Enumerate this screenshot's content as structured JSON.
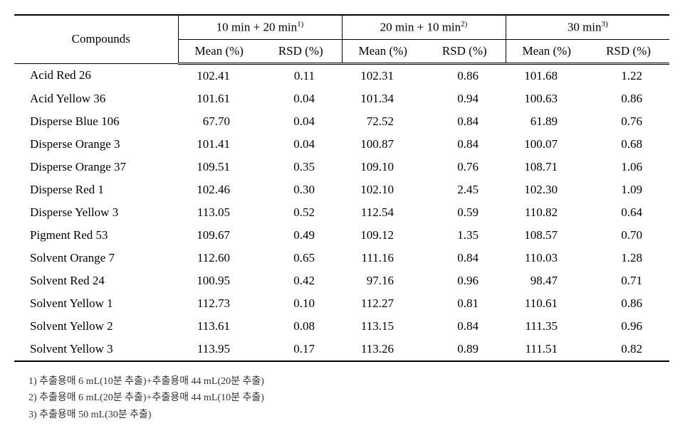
{
  "table": {
    "headers": {
      "compounds": "Compounds",
      "group1": {
        "label_pre": "10 min + 20 min",
        "sup": "1)"
      },
      "group2": {
        "label_pre": "20 min + 10 min",
        "sup": "2)"
      },
      "group3": {
        "label_pre": "30 min",
        "sup": "3)"
      },
      "mean": "Mean (%)",
      "rsd": "RSD (%)"
    },
    "rows": [
      {
        "compound": "Acid Red 26",
        "g1_mean": "102.41",
        "g1_rsd": "0.11",
        "g2_mean": "102.31",
        "g2_rsd": "0.86",
        "g3_mean": "101.68",
        "g3_rsd": "1.22"
      },
      {
        "compound": "Acid Yellow 36",
        "g1_mean": "101.61",
        "g1_rsd": "0.04",
        "g2_mean": "101.34",
        "g2_rsd": "0.94",
        "g3_mean": "100.63",
        "g3_rsd": "0.86"
      },
      {
        "compound": "Disperse Blue 106",
        "g1_mean": "67.70",
        "g1_rsd": "0.04",
        "g2_mean": "72.52",
        "g2_rsd": "0.84",
        "g3_mean": "61.89",
        "g3_rsd": "0.76"
      },
      {
        "compound": "Disperse Orange 3",
        "g1_mean": "101.41",
        "g1_rsd": "0.04",
        "g2_mean": "100.87",
        "g2_rsd": "0.84",
        "g3_mean": "100.07",
        "g3_rsd": "0.68"
      },
      {
        "compound": "Disperse Orange 37",
        "g1_mean": "109.51",
        "g1_rsd": "0.35",
        "g2_mean": "109.10",
        "g2_rsd": "0.76",
        "g3_mean": "108.71",
        "g3_rsd": "1.06"
      },
      {
        "compound": "Disperse Red 1",
        "g1_mean": "102.46",
        "g1_rsd": "0.30",
        "g2_mean": "102.10",
        "g2_rsd": "2.45",
        "g3_mean": "102.30",
        "g3_rsd": "1.09"
      },
      {
        "compound": "Disperse Yellow 3",
        "g1_mean": "113.05",
        "g1_rsd": "0.52",
        "g2_mean": "112.54",
        "g2_rsd": "0.59",
        "g3_mean": "110.82",
        "g3_rsd": "0.64"
      },
      {
        "compound": "Pigment Red 53",
        "g1_mean": "109.67",
        "g1_rsd": "0.49",
        "g2_mean": "109.12",
        "g2_rsd": "1.35",
        "g3_mean": "108.57",
        "g3_rsd": "0.70"
      },
      {
        "compound": "Solvent Orange 7",
        "g1_mean": "112.60",
        "g1_rsd": "0.65",
        "g2_mean": "111.16",
        "g2_rsd": "0.84",
        "g3_mean": "110.03",
        "g3_rsd": "1.28"
      },
      {
        "compound": "Solvent Red 24",
        "g1_mean": "100.95",
        "g1_rsd": "0.42",
        "g2_mean": "97.16",
        "g2_rsd": "0.96",
        "g3_mean": "98.47",
        "g3_rsd": "0.71"
      },
      {
        "compound": "Solvent Yellow 1",
        "g1_mean": "112.73",
        "g1_rsd": "0.10",
        "g2_mean": "112.27",
        "g2_rsd": "0.81",
        "g3_mean": "110.61",
        "g3_rsd": "0.86"
      },
      {
        "compound": "Solvent Yellow 2",
        "g1_mean": "113.61",
        "g1_rsd": "0.08",
        "g2_mean": "113.15",
        "g2_rsd": "0.84",
        "g3_mean": "111.35",
        "g3_rsd": "0.96"
      },
      {
        "compound": "Solvent Yellow 3",
        "g1_mean": "113.95",
        "g1_rsd": "0.17",
        "g2_mean": "113.26",
        "g2_rsd": "0.89",
        "g3_mean": "111.51",
        "g3_rsd": "0.82"
      }
    ]
  },
  "footnotes": {
    "fn1": "1) 추출용매 6 mL(10분 추출)+추출용매 44 mL(20분 추출)",
    "fn2": "2) 추출용매 6 mL(20분 추출)+추출용매 44 mL(10분 추출)",
    "fn3": "3) 추출용매 50 mL(30분 추출)"
  }
}
